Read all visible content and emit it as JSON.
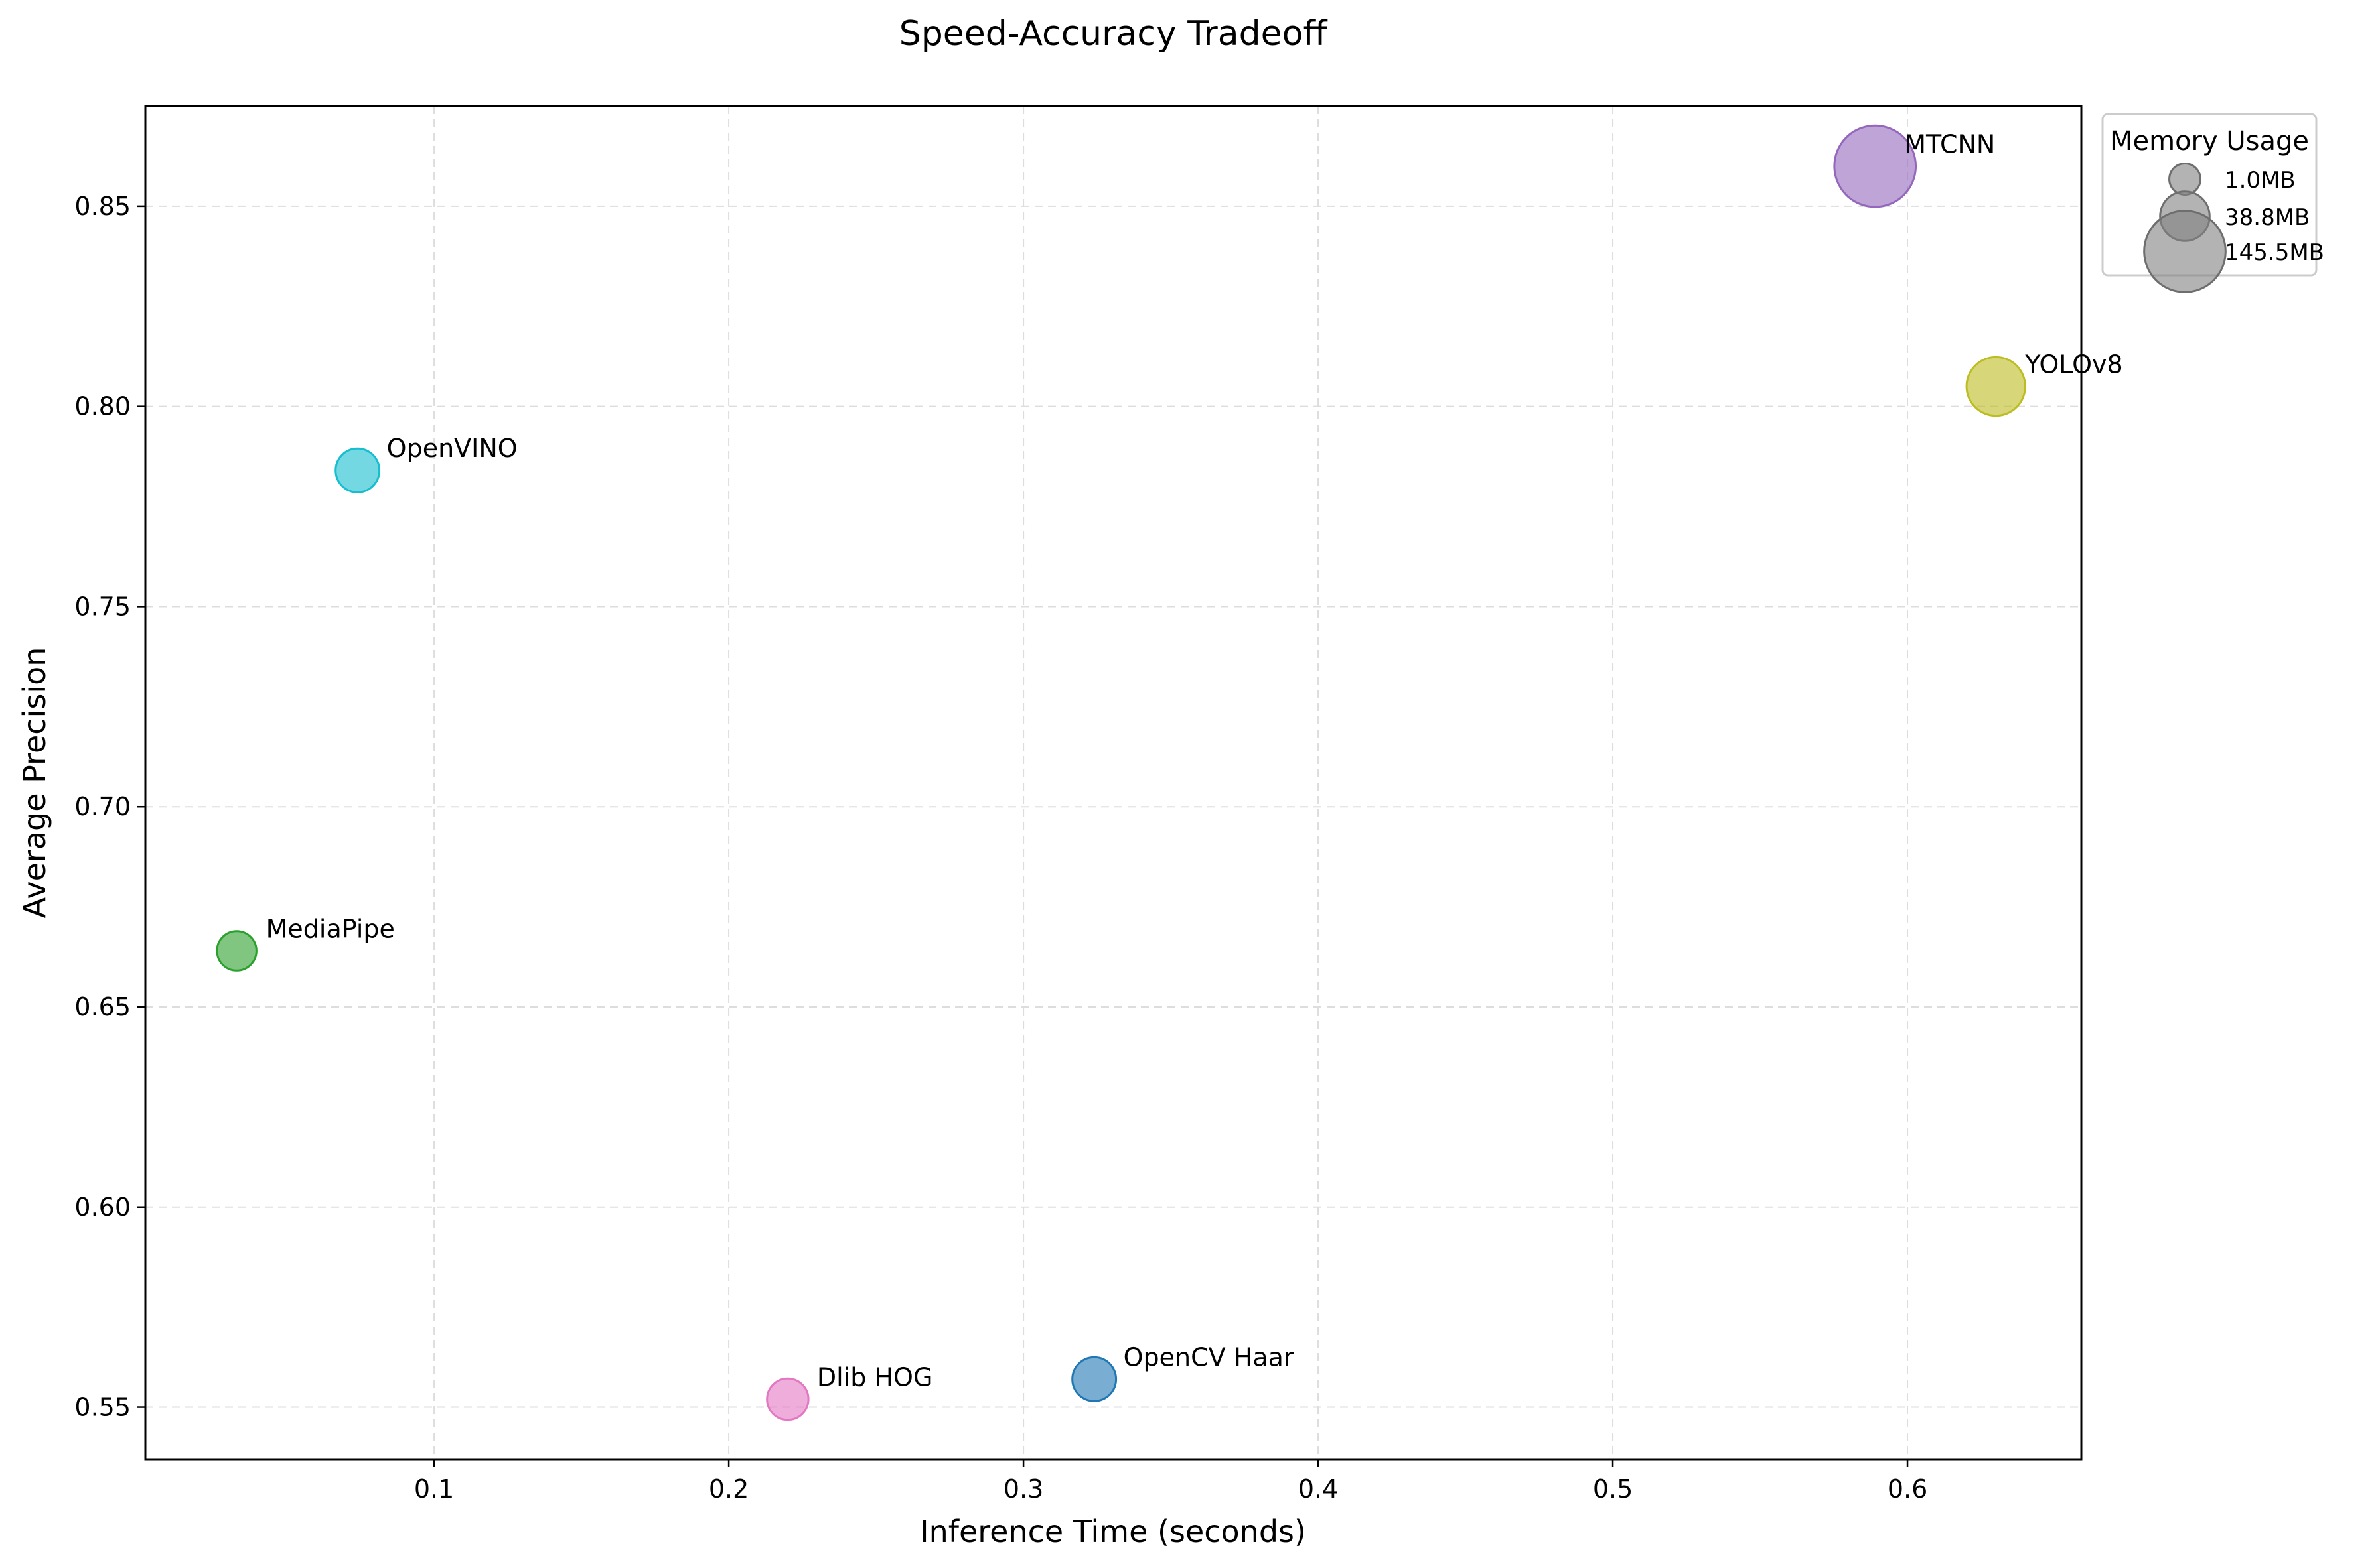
{
  "chart_data": {
    "type": "scatter",
    "title": "Speed-Accuracy Tradeoff",
    "xlabel": "Inference Time (seconds)",
    "ylabel": "Average Precision",
    "xlim": [
      0.002,
      0.659
    ],
    "ylim": [
      0.537,
      0.875
    ],
    "xticks": [
      0.1,
      0.2,
      0.3,
      0.4,
      0.5,
      0.6
    ],
    "xtick_labels": [
      "0.1",
      "0.2",
      "0.3",
      "0.4",
      "0.5",
      "0.6"
    ],
    "yticks": [
      0.55,
      0.6,
      0.65,
      0.7,
      0.75,
      0.8,
      0.85
    ],
    "ytick_labels": [
      "0.55",
      "0.60",
      "0.65",
      "0.70",
      "0.75",
      "0.80",
      "0.85"
    ],
    "grid": true,
    "legend": {
      "title": "Memory Usage",
      "placement": "outside-top-right",
      "entries": [
        {
          "label": "1.0MB",
          "memory_mb": 1.0
        },
        {
          "label": "38.8MB",
          "memory_mb": 38.8
        },
        {
          "label": "145.5MB",
          "memory_mb": 145.5
        }
      ]
    },
    "points": [
      {
        "label": "OpenCV Haar",
        "x": 0.324,
        "y": 0.557,
        "memory_mb": 25,
        "color": "#1f77b4"
      },
      {
        "label": "MediaPipe",
        "x": 0.033,
        "y": 0.664,
        "memory_mb": 16,
        "color": "#2ca02c"
      },
      {
        "label": "MTCNN",
        "x": 0.589,
        "y": 0.86,
        "memory_mb": 145.5,
        "color": "#9467bd"
      },
      {
        "label": "Dlib HOG",
        "x": 0.22,
        "y": 0.552,
        "memory_mb": 20,
        "color": "#e377c2"
      },
      {
        "label": "YOLOv8",
        "x": 0.63,
        "y": 0.805,
        "memory_mb": 64,
        "color": "#bcbd22"
      },
      {
        "label": "OpenVINO",
        "x": 0.074,
        "y": 0.784,
        "memory_mb": 25,
        "color": "#17becf"
      }
    ]
  }
}
